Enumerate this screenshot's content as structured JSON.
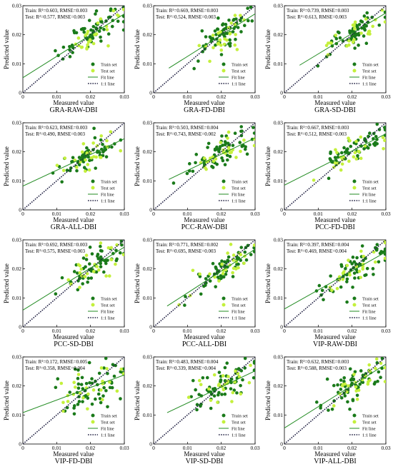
{
  "colors": {
    "train": "#1a7a1a",
    "test": "#c4f03c",
    "fit": "#228b22",
    "one_to_one": "#222244"
  },
  "chart_data": [
    {
      "type": "scatter",
      "title": "GRA-RAW-DBI",
      "xlabel": "Measured value",
      "ylabel": "Predicted value",
      "xlim": [
        0,
        0.03
      ],
      "ylim": [
        0,
        0.03
      ],
      "xticks": [
        "0",
        "0.01",
        "0.02",
        "0.03"
      ],
      "yticks": [
        "0",
        "0.01",
        "0.02",
        "0.03"
      ],
      "legend": [
        "Train set",
        "Test set",
        "Fit line",
        "1:1 line"
      ],
      "legend_position": "bottom-right",
      "train_stats": "Train: R²=0.603, RMSE=0.003",
      "test_stats": "Test: R²=0.577, RMSE=0.003",
      "fit_line": {
        "x0": 0,
        "y0": 0.0052,
        "x1": 0.03,
        "y1": 0.0272
      }
    },
    {
      "type": "scatter",
      "title": "GRA-FD-DBI",
      "xlabel": "Measured value",
      "ylabel": "Predicted value",
      "xlim": [
        0,
        0.03
      ],
      "ylim": [
        0,
        0.03
      ],
      "xticks": [
        "0",
        "0.01",
        "0.02",
        "0.03"
      ],
      "yticks": [
        "0",
        "0.01",
        "0.02",
        "0.03"
      ],
      "legend": [
        "Train set",
        "Test set",
        "Fit line",
        "1:1 line"
      ],
      "legend_position": "bottom-right",
      "train_stats": "Train: R²=0.669, RMSE=0.003",
      "test_stats": "Test: R²=0.524, RMSE=0.003",
      "fit_line": {
        "x0": 0.0045,
        "y0": 0.0085,
        "x1": 0.03,
        "y1": 0.0272
      }
    },
    {
      "type": "scatter",
      "title": "GRA-SD-DBI",
      "xlabel": "Measured value",
      "ylabel": "Predicted value",
      "xlim": [
        0,
        0.03
      ],
      "ylim": [
        0,
        0.03
      ],
      "xticks": [
        "0",
        "0.01",
        "0.02",
        "0.03"
      ],
      "yticks": [
        "0",
        "0.01",
        "0.02",
        "0.03"
      ],
      "legend": [
        "Train set",
        "Test set",
        "Fit line",
        "1:1 line"
      ],
      "legend_position": "bottom-right",
      "train_stats": "Train: R²=0.739, RMSE=0.003",
      "test_stats": "Test: R²=0.613, RMSE=0.003",
      "fit_line": {
        "x0": 0.0045,
        "y0": 0.0095,
        "x1": 0.03,
        "y1": 0.0275
      }
    },
    {
      "type": "scatter",
      "title": "GRA-ALL-DBI",
      "xlabel": "Measured value",
      "ylabel": "Predicted value",
      "xlim": [
        0,
        0.03
      ],
      "ylim": [
        0,
        0.03
      ],
      "xticks": [
        "0",
        "0.01",
        "0.02",
        "0.03"
      ],
      "yticks": [
        "0",
        "0.01",
        "0.02",
        "0.03"
      ],
      "legend": [
        "Train set",
        "Test set",
        "Fit line",
        "1:1 line"
      ],
      "legend_position": "bottom-right",
      "train_stats": "Train: R²=0.623, RMSE=0.003",
      "test_stats": "Test: R²=0.490, RMSE=0.003",
      "fit_line": {
        "x0": 0,
        "y0": 0.0082,
        "x1": 0.03,
        "y1": 0.0245
      }
    },
    {
      "type": "scatter",
      "title": "PCC-RAW-DBI",
      "xlabel": "Measured value",
      "ylabel": "Predicted value",
      "xlim": [
        0,
        0.03
      ],
      "ylim": [
        0,
        0.03
      ],
      "xticks": [
        "0",
        "0.01",
        "0.02",
        "0.03"
      ],
      "yticks": [
        "0",
        "0.01",
        "0.02",
        "0.03"
      ],
      "legend": [
        "Train set",
        "Test set",
        "Fit line",
        "1:1 line"
      ],
      "legend_position": "bottom-right",
      "train_stats": "Train: R²=0.503, RMSE=0.004",
      "test_stats": "Test: R²=0.743, RMSE=0.002",
      "fit_line": {
        "x0": 0.0045,
        "y0": 0.0105,
        "x1": 0.03,
        "y1": 0.0248
      }
    },
    {
      "type": "scatter",
      "title": "PCC-FD-DBI",
      "xlabel": "Measured value",
      "ylabel": "Predicted value",
      "xlim": [
        0,
        0.03
      ],
      "ylim": [
        0,
        0.03
      ],
      "xticks": [
        "0",
        "0.01",
        "0.02",
        "0.03"
      ],
      "yticks": [
        "0",
        "0.01",
        "0.02",
        "0.03"
      ],
      "legend": [
        "Train set",
        "Test set",
        "Fit line",
        "1:1 line"
      ],
      "legend_position": "bottom-right",
      "train_stats": "Train: R²=0.667, RMSE=0.003",
      "test_stats": "Test: R²=0.512, RMSE=0.003",
      "fit_line": {
        "x0": 0,
        "y0": 0.0085,
        "x1": 0.03,
        "y1": 0.0262
      }
    },
    {
      "type": "scatter",
      "title": "PCC-SD-DBI",
      "xlabel": "Measured value",
      "ylabel": "Predicted value",
      "xlim": [
        0,
        0.03
      ],
      "ylim": [
        0,
        0.03
      ],
      "xticks": [
        "0",
        "0.01",
        "0.02",
        "0.03"
      ],
      "yticks": [
        "0",
        "0.01",
        "0.02",
        "0.03"
      ],
      "legend": [
        "Train set",
        "Test set",
        "Fit line",
        "1:1 line"
      ],
      "legend_position": "bottom-right",
      "train_stats": "Train: R²=0.692, RMSE=0.003",
      "test_stats": "Test: R²=0.575, RMSE=0.003",
      "fit_line": {
        "x0": 0,
        "y0": 0.0058,
        "x1": 0.03,
        "y1": 0.0275
      }
    },
    {
      "type": "scatter",
      "title": "PCC-ALL-DBI",
      "xlabel": "Measured value",
      "ylabel": "Predicted value",
      "xlim": [
        0,
        0.03
      ],
      "ylim": [
        0,
        0.03
      ],
      "xticks": [
        "0",
        "0.01",
        "0.02",
        "0.03"
      ],
      "yticks": [
        "0",
        "0.01",
        "0.02",
        "0.03"
      ],
      "legend": [
        "Train set",
        "Test set",
        "Fit line",
        "1:1 line"
      ],
      "legend_position": "bottom-right",
      "train_stats": "Train: R²=0.771, RMSE=0.002",
      "test_stats": "Test: R²=0.695, RMSE=0.003",
      "fit_line": {
        "x0": 0.004,
        "y0": 0.0072,
        "x1": 0.03,
        "y1": 0.0268
      }
    },
    {
      "type": "scatter",
      "title": "VIP-RAW-DBI",
      "xlabel": "Measured value",
      "ylabel": "Predicted value",
      "xlim": [
        0,
        0.03
      ],
      "ylim": [
        0,
        0.03
      ],
      "xticks": [
        "0",
        "0.01",
        "0.02",
        "0.03"
      ],
      "yticks": [
        "0",
        "0.01",
        "0.02",
        "0.03"
      ],
      "legend": [
        "Train set",
        "Test set",
        "Fit line",
        "1:1 line"
      ],
      "legend_position": "bottom-right",
      "train_stats": "Train: R²=0.397, RMSE=0.004",
      "test_stats": "Test: R²=0.469, RMSE=0.004",
      "fit_line": {
        "x0": 0,
        "y0": 0.0062,
        "x1": 0.03,
        "y1": 0.0258
      }
    },
    {
      "type": "scatter",
      "title": "VIP-FD-DBI",
      "xlabel": "Measured value",
      "ylabel": "Predicted value",
      "xlim": [
        0,
        0.03
      ],
      "ylim": [
        0,
        0.03
      ],
      "xticks": [
        "0",
        "0.01",
        "0.02",
        "0.03"
      ],
      "yticks": [
        "0",
        "0.01",
        "0.02",
        "0.03"
      ],
      "legend": [
        "Train set",
        "Test set",
        "Fit line",
        "1:1 line"
      ],
      "legend_position": "bottom-right",
      "train_stats": "Train: R²=0.172, RMSE=0.005",
      "test_stats": "Test: R²=0.358, RMSE=0.004",
      "fit_line": {
        "x0": 0,
        "y0": 0.0108,
        "x1": 0.03,
        "y1": 0.0238
      }
    },
    {
      "type": "scatter",
      "title": "VIP-SD-DBI",
      "xlabel": "Measured value",
      "ylabel": "Predicted value",
      "xlim": [
        0,
        0.03
      ],
      "ylim": [
        0,
        0.03
      ],
      "xticks": [
        "0",
        "0.01",
        "0.02",
        "0.03"
      ],
      "yticks": [
        "0",
        "0.01",
        "0.02",
        "0.03"
      ],
      "legend": [
        "Train set",
        "Test set",
        "Fit line",
        "1:1 line"
      ],
      "legend_position": "bottom-right",
      "train_stats": "Train: R²=0.483, RMSE=0.004",
      "test_stats": "Test: R²=0.339, RMSE=0.004",
      "fit_line": {
        "x0": 0.004,
        "y0": 0.0108,
        "x1": 0.03,
        "y1": 0.0252
      }
    },
    {
      "type": "scatter",
      "title": "VIP-ALL-DBI",
      "xlabel": "Measured value",
      "ylabel": "Predicted value",
      "xlim": [
        0,
        0.03
      ],
      "ylim": [
        0,
        0.03
      ],
      "xticks": [
        "0",
        "0.01",
        "0.02",
        "0.03"
      ],
      "yticks": [
        "0",
        "0.01",
        "0.02",
        "0.03"
      ],
      "legend": [
        "Train set",
        "Test set",
        "Fit line",
        "1:1 line"
      ],
      "legend_position": "bottom-right",
      "train_stats": "Train: R²=0.632, RMSE=0.003",
      "test_stats": "Test: R²=0.588, RMSE=0.003",
      "fit_line": {
        "x0": 0,
        "y0": 0.0055,
        "x1": 0.03,
        "y1": 0.0275
      }
    }
  ]
}
